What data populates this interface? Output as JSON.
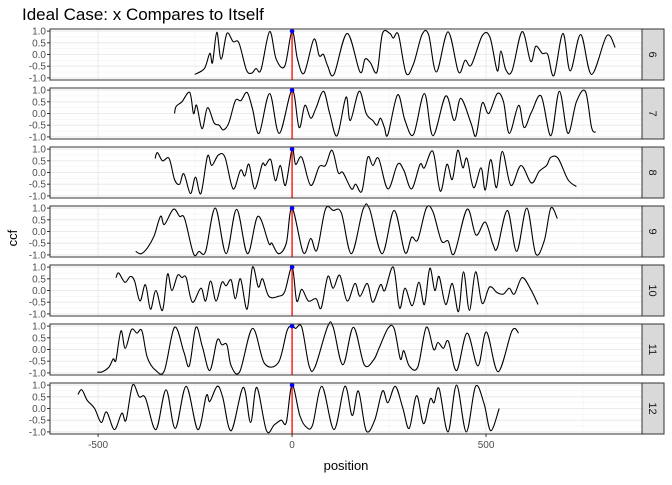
{
  "chart_data": {
    "type": "line",
    "title": "Ideal Case: x Compares to Itself",
    "xlabel": "position",
    "ylabel": "ccf",
    "xlim": [
      -624,
      902
    ],
    "ylim": [
      -1.09,
      1.09
    ],
    "x_ticks": [
      -500,
      0,
      500
    ],
    "y_ticks": [
      -1.0,
      -0.5,
      0.0,
      0.5,
      1.0
    ],
    "y_tick_labels": [
      "-1.0",
      "-0.5",
      "0.0",
      "0.5",
      "1.0"
    ],
    "grid": true,
    "reference_line": {
      "x": 0,
      "color": "#ff0000"
    },
    "peak_point": {
      "x": 0,
      "y": 1.0,
      "color": "#0000ff"
    },
    "line_color": "#000000",
    "facets": [
      {
        "label": "6",
        "x": [
          -251,
          -226,
          -212,
          -205,
          -194,
          -183,
          -168,
          -152,
          -137,
          -118,
          -104,
          -93,
          -80,
          -58,
          -41,
          -19,
          0,
          14,
          31,
          56,
          70,
          81,
          92,
          108,
          142,
          175,
          188,
          202,
          219,
          233,
          252,
          261,
          274,
          294,
          313,
          335,
          352,
          372,
          402,
          429,
          446,
          462,
          490,
          510,
          529,
          538,
          551,
          567,
          593,
          615,
          628,
          645,
          659,
          675,
          698,
          717,
          744,
          772,
          811,
          833
        ],
        "y": [
          -0.85,
          -0.6,
          0.05,
          -0.35,
          0.95,
          -0.2,
          0.9,
          0.55,
          0.5,
          -0.65,
          -0.8,
          -0.6,
          -0.65,
          0.98,
          -0.2,
          -0.5,
          1.0,
          -0.2,
          -0.8,
          0.65,
          -0.05,
          0.0,
          -0.5,
          -0.85,
          0.9,
          -0.75,
          -0.2,
          -0.35,
          -0.75,
          0.9,
          0.9,
          0.7,
          0.85,
          -0.8,
          -0.4,
          0.85,
          0.85,
          -0.75,
          0.97,
          -0.75,
          -0.25,
          -0.45,
          0.8,
          0.75,
          -0.7,
          0.15,
          -0.65,
          -0.7,
          0.98,
          -0.3,
          0.35,
          0.05,
          0.0,
          -0.9,
          0.9,
          -0.7,
          0.85,
          -0.85,
          0.8,
          0.3
        ]
      },
      {
        "label": "7",
        "x": [
          -303,
          -299,
          -284,
          -264,
          -254,
          -246,
          -232,
          -218,
          -201,
          -188,
          -177,
          -163,
          -146,
          -132,
          -116,
          -102,
          -85,
          -58,
          -33,
          0,
          18,
          33,
          48,
          61,
          81,
          97,
          116,
          139,
          150,
          173,
          191,
          208,
          219,
          228,
          238,
          247,
          272,
          291,
          313,
          341,
          363,
          396,
          418,
          435,
          461,
          474,
          490,
          507,
          529,
          545,
          560,
          584,
          598,
          617,
          642,
          667,
          689,
          711,
          733,
          756,
          772,
          783
        ],
        "y": [
          0.0,
          0.3,
          0.5,
          0.9,
          0.0,
          0.35,
          -0.65,
          0.25,
          -0.4,
          -0.5,
          -0.7,
          -0.4,
          0.55,
          0.55,
          0.9,
          0.2,
          -0.85,
          0.85,
          -0.85,
          1.0,
          -0.6,
          0.35,
          -0.2,
          0.2,
          0.95,
          0.0,
          -0.95,
          0.7,
          -0.3,
          0.95,
          0.0,
          -0.3,
          -0.5,
          -0.2,
          -0.6,
          -0.9,
          0.8,
          -0.3,
          -0.9,
          0.85,
          -0.95,
          0.75,
          -0.3,
          0.65,
          -0.4,
          -0.95,
          0.45,
          0.0,
          0.85,
          0.5,
          -0.85,
          0.35,
          -0.6,
          0.05,
          0.75,
          -0.95,
          0.95,
          -0.85,
          0.5,
          0.95,
          -0.6,
          -0.8
        ]
      },
      {
        "label": "8",
        "x": [
          -353,
          -347,
          -334,
          -317,
          -303,
          -290,
          -279,
          -262,
          -249,
          -235,
          -218,
          -207,
          -190,
          -173,
          -152,
          -133,
          -122,
          -111,
          -96,
          -77,
          -69,
          -55,
          -43,
          -30,
          -17,
          0,
          9,
          25,
          48,
          70,
          86,
          103,
          119,
          131,
          153,
          164,
          180,
          195,
          208,
          223,
          247,
          272,
          288,
          308,
          330,
          341,
          363,
          382,
          399,
          413,
          427,
          440,
          451,
          468,
          487,
          498,
          512,
          527,
          542,
          564,
          590,
          617,
          637,
          656,
          667,
          686,
          711,
          733
        ],
        "y": [
          0.6,
          0.85,
          0.5,
          0.6,
          -0.3,
          -0.5,
          -0.05,
          -0.9,
          -0.2,
          -0.9,
          0.7,
          0.3,
          0.75,
          0.65,
          -0.7,
          0.1,
          -0.15,
          0.35,
          -0.7,
          0.35,
          0.3,
          0.55,
          -0.35,
          0.3,
          -0.55,
          1.0,
          0.35,
          0.65,
          -0.55,
          0.25,
          0.3,
          0.95,
          0.0,
          0.0,
          -0.7,
          -0.5,
          -0.8,
          0.65,
          0.3,
          0.6,
          -0.7,
          0.35,
          0.1,
          -0.7,
          0.35,
          0.2,
          0.9,
          -0.8,
          0.35,
          -0.3,
          0.95,
          0.2,
          0.6,
          -0.65,
          0.2,
          -0.75,
          0.55,
          -0.65,
          0.9,
          -0.55,
          0.3,
          -0.45,
          0.05,
          0.3,
          0.65,
          0.6,
          -0.3,
          -0.6
        ]
      },
      {
        "label": "9",
        "x": [
          -403,
          -389,
          -373,
          -356,
          -339,
          -329,
          -306,
          -290,
          -277,
          -254,
          -240,
          -223,
          -198,
          -170,
          -143,
          -115,
          -88,
          -60,
          -52,
          -35,
          -15,
          0,
          29,
          48,
          64,
          86,
          106,
          127,
          153,
          183,
          200,
          232,
          263,
          291,
          308,
          324,
          346,
          363,
          385,
          402,
          418,
          451,
          474,
          498,
          518,
          529,
          555,
          579,
          605,
          628,
          650,
          667,
          684
        ],
        "y": [
          -0.85,
          -0.95,
          -0.7,
          -0.2,
          0.65,
          0.3,
          0.95,
          0.65,
          0.55,
          -0.95,
          -0.85,
          -0.85,
          1.0,
          -0.95,
          0.95,
          -0.95,
          0.65,
          -0.5,
          -0.5,
          -0.95,
          -0.5,
          1.0,
          -0.9,
          -0.3,
          -0.8,
          0.95,
          0.9,
          0.8,
          -0.95,
          0.95,
          0.95,
          -0.95,
          0.9,
          -0.9,
          -0.25,
          -0.35,
          1.0,
          0.85,
          -0.4,
          -0.4,
          -0.95,
          0.95,
          -0.15,
          0.4,
          -0.55,
          -0.7,
          0.9,
          -0.85,
          1.0,
          -0.95,
          -0.4,
          1.0,
          0.55
        ]
      },
      {
        "label": "10",
        "x": [
          -454,
          -447,
          -431,
          -417,
          -406,
          -392,
          -378,
          -365,
          -351,
          -334,
          -321,
          -310,
          -295,
          -284,
          -273,
          -257,
          -235,
          -223,
          -210,
          -196,
          -181,
          -170,
          -157,
          -146,
          -133,
          -116,
          -102,
          -87,
          -76,
          -60,
          -35,
          -19,
          0,
          12,
          25,
          42,
          62,
          75,
          92,
          106,
          123,
          142,
          162,
          175,
          194,
          208,
          228,
          239,
          261,
          277,
          291,
          310,
          327,
          341,
          355,
          368,
          379,
          396,
          413,
          429,
          442,
          457,
          473,
          490,
          509,
          529,
          545,
          560,
          573,
          593,
          615,
          634
        ],
        "y": [
          0.55,
          0.75,
          0.35,
          0.6,
          0.4,
          -0.45,
          0.25,
          -0.8,
          0.0,
          -0.85,
          0.7,
          0.0,
          0.65,
          0.55,
          0.55,
          -0.5,
          0.1,
          -0.45,
          0.4,
          -0.45,
          0.35,
          0.2,
          0.45,
          -0.35,
          0.5,
          -0.8,
          1.0,
          0.15,
          0.5,
          -0.25,
          -0.25,
          -0.05,
          1.0,
          -0.45,
          0.05,
          -0.45,
          -0.35,
          -0.75,
          0.6,
          0.1,
          0.65,
          -0.45,
          0.3,
          -0.25,
          0.3,
          -0.5,
          0.25,
          0.0,
          1.0,
          -0.75,
          0.1,
          -0.65,
          0.35,
          -0.6,
          0.95,
          0.0,
          0.6,
          -0.6,
          0.3,
          -0.9,
          0.8,
          -0.85,
          0.8,
          -0.55,
          0.15,
          -0.1,
          -0.15,
          0.1,
          -0.15,
          0.55,
          0.05,
          -0.6
        ]
      },
      {
        "label": "11",
        "x": [
          -502,
          -489,
          -472,
          -461,
          -454,
          -441,
          -430,
          -414,
          -400,
          -387,
          -373,
          -351,
          -329,
          -303,
          -279,
          -265,
          -248,
          -231,
          -212,
          -193,
          -181,
          -168,
          -157,
          -135,
          -102,
          -71,
          -35,
          -13,
          0,
          9,
          25,
          44,
          59,
          92,
          106,
          131,
          158,
          186,
          210,
          224,
          247,
          263,
          279,
          288,
          302,
          324,
          346,
          365,
          376,
          390,
          403,
          424,
          451,
          479,
          501,
          531,
          567,
          584
        ],
        "y": [
          -0.97,
          -0.95,
          -0.75,
          -0.4,
          -0.45,
          0.8,
          0.05,
          0.85,
          0.7,
          0.8,
          -0.35,
          -0.9,
          -0.9,
          0.95,
          -0.1,
          -0.7,
          0.95,
          0.1,
          -0.9,
          0.4,
          0.2,
          0.2,
          -0.7,
          -0.95,
          0.9,
          -0.6,
          -0.55,
          0.8,
          1.0,
          0.9,
          0.95,
          -0.7,
          -0.75,
          1.0,
          0.95,
          -0.65,
          0.95,
          -0.65,
          -0.45,
          0.05,
          0.9,
          0.9,
          -0.4,
          -0.05,
          -0.7,
          -0.75,
          0.95,
          0.0,
          0.3,
          0.05,
          0.35,
          -0.9,
          0.7,
          -0.7,
          0.75,
          -0.95,
          0.8,
          0.7
        ]
      },
      {
        "label": "12",
        "x": [
          -552,
          -542,
          -528,
          -509,
          -492,
          -478,
          -458,
          -439,
          -428,
          -411,
          -394,
          -378,
          -351,
          -325,
          -301,
          -273,
          -243,
          -221,
          -212,
          -193,
          -179,
          -157,
          -126,
          -107,
          -91,
          -66,
          -46,
          -28,
          -15,
          0,
          20,
          37,
          53,
          77,
          108,
          136,
          155,
          171,
          191,
          213,
          233,
          247,
          266,
          285,
          302,
          321,
          339,
          356,
          366,
          379,
          402,
          424,
          449,
          473,
          495,
          512,
          534
        ],
        "y": [
          0.6,
          0.8,
          0.35,
          0.0,
          -0.6,
          -0.15,
          -0.9,
          -0.2,
          -0.5,
          1.0,
          0.5,
          0.45,
          -0.9,
          0.8,
          -0.85,
          0.95,
          -0.9,
          0.55,
          0.3,
          0.95,
          0.5,
          -0.95,
          0.9,
          -0.6,
          0.9,
          -0.95,
          -0.7,
          -0.5,
          -0.6,
          1.0,
          -0.3,
          -0.8,
          -0.7,
          0.95,
          -0.9,
          0.95,
          -0.3,
          0.75,
          -0.95,
          -0.5,
          0.75,
          0.25,
          0.95,
          0.05,
          -0.85,
          0.55,
          -0.65,
          0.4,
          0.25,
          0.85,
          -1.0,
          1.0,
          -1.0,
          0.95,
          0.2,
          -0.95,
          0.0
        ]
      }
    ]
  }
}
